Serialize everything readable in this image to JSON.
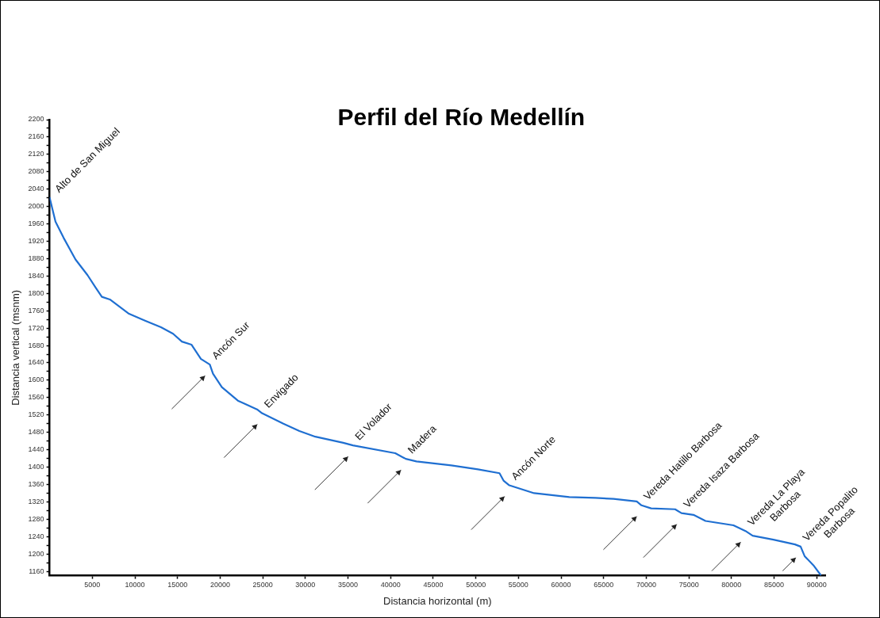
{
  "chart_data": {
    "type": "line",
    "title": "Perfil del Río Medellín",
    "xlabel": "Distancia horizontal (m)",
    "ylabel": "Distancia vertical (msnm)",
    "x": [
      0,
      680,
      1630,
      3030,
      4440,
      5370,
      6120,
      7060,
      9310,
      11190,
      13060,
      14480,
      15510,
      16630,
      17750,
      18790,
      19160,
      20200,
      22080,
      24330,
      24920,
      27420,
      29300,
      31170,
      34450,
      35580,
      40550,
      41780,
      43030,
      47120,
      50250,
      52780,
      53250,
      53930,
      56840,
      60970,
      64030,
      66160,
      68880,
      69440,
      70570,
      73380,
      74130,
      75540,
      76950,
      80230,
      81640,
      82480,
      84920,
      87450,
      88110,
      88580,
      89610,
      90450
    ],
    "series": [
      {
        "color": "#1f6fd1",
        "values": [
          2020,
          1965,
          1928,
          1878,
          1842,
          1814,
          1792,
          1786,
          1753,
          1737,
          1722,
          1707,
          1689,
          1682,
          1649,
          1636,
          1615,
          1584,
          1553,
          1533,
          1524,
          1500,
          1483,
          1470,
          1456,
          1450,
          1432,
          1419,
          1413,
          1404,
          1395,
          1386,
          1369,
          1358,
          1340,
          1331,
          1329,
          1327,
          1321,
          1312,
          1305,
          1303,
          1294,
          1290,
          1276,
          1266,
          1253,
          1242,
          1233,
          1222,
          1217,
          1195,
          1174,
          1152
        ]
      }
    ],
    "xlim": [
      0,
      91000
    ],
    "ylim": [
      1150,
      2200
    ],
    "xticks": [
      5000,
      10000,
      15000,
      20000,
      25000,
      30000,
      35000,
      40000,
      45000,
      50000,
      55000,
      60000,
      65000,
      70000,
      75000,
      80000,
      85000,
      90000
    ],
    "yticks": [
      1160,
      {
        "value": 1180,
        "label": null
      },
      1200,
      {
        "value": 1220,
        "label": null
      },
      1240,
      {
        "value": 1260,
        "label": null
      },
      1280,
      {
        "value": 1300,
        "label": null
      },
      1320,
      {
        "value": 1340,
        "label": null
      },
      1360,
      {
        "value": 1380,
        "label": null
      },
      1400,
      {
        "value": 1420,
        "label": null
      },
      1440,
      {
        "value": 1460,
        "label": null
      },
      1480,
      {
        "value": 1500,
        "label": null
      },
      1520,
      {
        "value": 1540,
        "label": null
      },
      1560,
      {
        "value": 1580,
        "label": null
      },
      1600,
      {
        "value": 1620,
        "label": null
      },
      1640,
      {
        "value": 1660,
        "label": null
      },
      1680,
      {
        "value": 1700,
        "label": null
      },
      1720,
      {
        "value": 1740,
        "label": null
      },
      1760,
      {
        "value": 1780,
        "label": null
      },
      1800,
      {
        "value": 1820,
        "label": null
      },
      1840,
      {
        "value": 1860,
        "label": null
      },
      1880,
      {
        "value": 1900,
        "label": null
      },
      1920,
      {
        "value": 1940,
        "label": null
      },
      1960,
      {
        "value": 1980,
        "label": null
      },
      2000,
      {
        "value": 2020,
        "label": null
      },
      2040,
      {
        "value": 2060,
        "label": null
      },
      2080,
      {
        "value": 2100,
        "label": null
      },
      2120,
      {
        "value": 2140,
        "label": null
      },
      2160,
      {
        "value": 2180,
        "label": null
      },
      2200
    ],
    "grid": false,
    "legend": false,
    "marker": "none",
    "line_style": "solid",
    "annotations": [
      {
        "text": "Alto de San Miguel",
        "x": 0,
        "y": 2020
      },
      {
        "text": "Ancón Sur",
        "x": 18790,
        "y": 1636
      },
      {
        "text": "Envigado",
        "x": 24920,
        "y": 1524
      },
      {
        "text": "El Volador",
        "x": 35580,
        "y": 1450
      },
      {
        "text": "Madera",
        "x": 41780,
        "y": 1419
      },
      {
        "text": "Ancón Norte",
        "x": 53930,
        "y": 1358
      },
      {
        "text": "Vereda Hatillo Barbosa",
        "x": 69440,
        "y": 1312
      },
      {
        "text": "Vereda Isaza Barbosa",
        "x": 74130,
        "y": 1294
      },
      {
        "text": "Vereda La Playa\nBarbosa",
        "x": 81640,
        "y": 1253
      },
      {
        "text": "Vereda Popalito\nBarbosa",
        "x": 88110,
        "y": 1217
      }
    ]
  }
}
